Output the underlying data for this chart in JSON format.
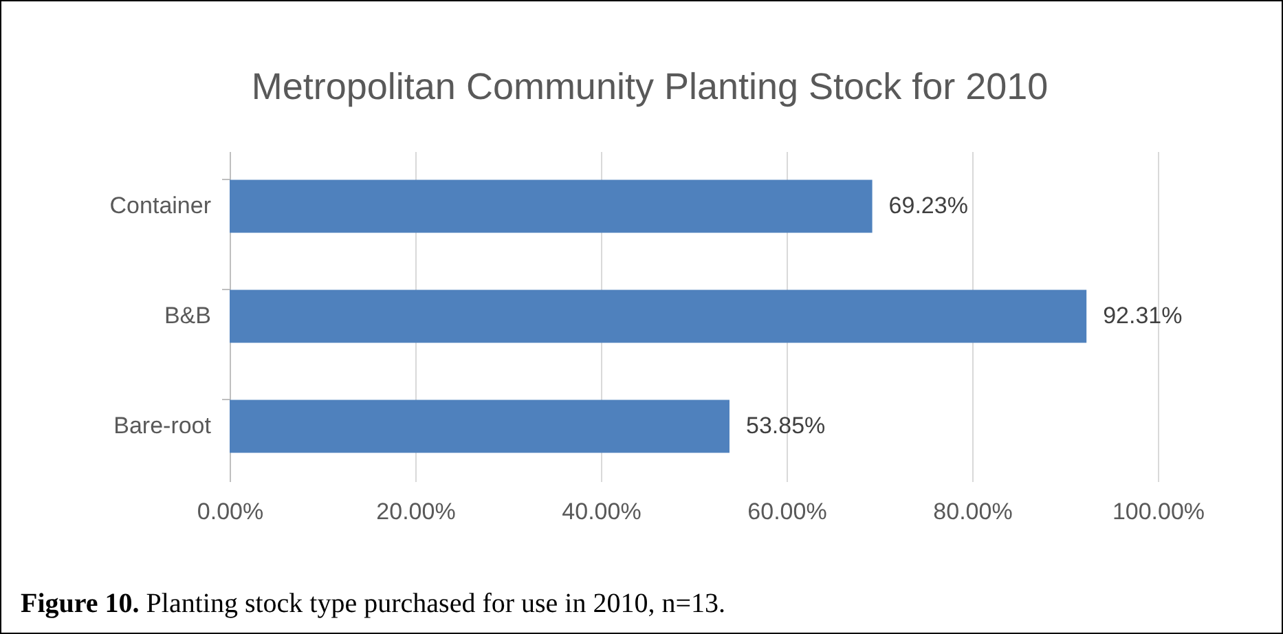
{
  "chart_data": {
    "type": "bar",
    "orientation": "horizontal",
    "title": "Metropolitan Community Planting Stock for 2010",
    "categories": [
      "Container",
      "B&B",
      "Bare-root"
    ],
    "values": [
      69.23,
      92.31,
      53.85
    ],
    "value_labels": [
      "69.23%",
      "92.31%",
      "53.85%"
    ],
    "color": "#4f81bd",
    "xlim": [
      0,
      100
    ],
    "xticks": [
      {
        "value": 0,
        "label": "0.00%"
      },
      {
        "value": 20,
        "label": "20.00%"
      },
      {
        "value": 40,
        "label": "40.00%"
      },
      {
        "value": 60,
        "label": "60.00%"
      },
      {
        "value": 80,
        "label": "80.00%"
      },
      {
        "value": 100,
        "label": "100.00%"
      }
    ],
    "grid": "x",
    "annotations": [
      "Figure 10. Planting stock type purchased for use in 2010, n=13."
    ]
  }
}
